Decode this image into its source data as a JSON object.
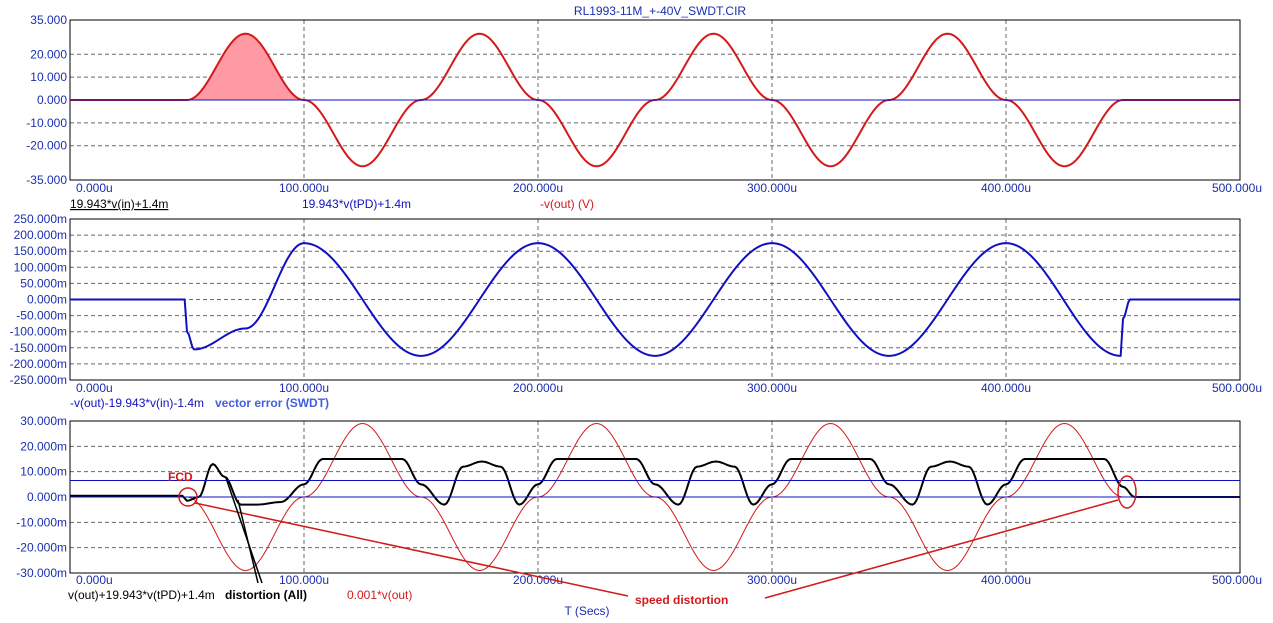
{
  "title": "RL1993-11M_+-40V_SWDT.CIR",
  "colors": {
    "red": "#d11a1a",
    "blue": "#1010c0",
    "black": "#000000",
    "fill": "#ff9aa5",
    "tick": "#1a2fb0",
    "annot": "#d11a1a",
    "vecerr": "#4060e0"
  },
  "x_axis": {
    "label": "T (Secs)",
    "range": [
      0,
      500
    ],
    "ticks": [
      0,
      100,
      200,
      300,
      400,
      500
    ],
    "tick_labels": [
      "0.000u",
      "100.000u",
      "200.000u",
      "300.000u",
      "400.000u",
      "500.000u"
    ]
  },
  "chart_data": [
    {
      "type": "line",
      "x_unit": "us",
      "ylim": [
        -35,
        35
      ],
      "y_ticks": [
        35,
        20,
        10,
        0,
        -10,
        -20,
        -35
      ],
      "y_tick_labels": [
        "35.000",
        "20.000",
        "10.000",
        "0.000",
        "-10.000",
        "-20.000",
        "-35.000"
      ],
      "legend": [
        "19.943*v(in)+1.4m",
        "19.943*v(tPD)+1.4m",
        "-v(out) (V)"
      ],
      "series": [
        {
          "name": "-v(out) (V)",
          "color": "#d11a1a",
          "points": [
            [
              0,
              0
            ],
            [
              50,
              0
            ],
            [
              75,
              29
            ],
            [
              100,
              0
            ],
            [
              125,
              -29
            ],
            [
              150,
              0
            ],
            [
              175,
              29
            ],
            [
              200,
              0
            ],
            [
              225,
              -29
            ],
            [
              250,
              0
            ],
            [
              275,
              29
            ],
            [
              300,
              0
            ],
            [
              325,
              -29
            ],
            [
              350,
              0
            ],
            [
              375,
              29
            ],
            [
              400,
              0
            ],
            [
              425,
              -29
            ],
            [
              450,
              0
            ],
            [
              500,
              0
            ]
          ]
        },
        {
          "name": "19.943*v(tPD)+1.4m",
          "color": "#1010c0",
          "points": [
            [
              0,
              0
            ],
            [
              500,
              0
            ]
          ]
        }
      ],
      "shaded": {
        "from": 50,
        "to": 100
      }
    },
    {
      "type": "line",
      "x_unit": "us",
      "ylim": [
        -250,
        250
      ],
      "y_unit": "m",
      "y_ticks": [
        250,
        200,
        150,
        100,
        50,
        0,
        -50,
        -100,
        -150,
        -200,
        -250
      ],
      "y_tick_labels": [
        "250.000m",
        "200.000m",
        "150.000m",
        "100.000m",
        "50.000m",
        "0.000m",
        "-50.000m",
        "-100.000m",
        "-150.000m",
        "-200.000m",
        "-250.000m"
      ],
      "legend": [
        "-v(out)-19.943*v(in)-1.4m"
      ],
      "annotation": "vector error (SWDT)",
      "series": [
        {
          "name": "-v(out)-19.943*v(in)-1.4m",
          "color": "#1010c0",
          "points": [
            [
              0,
              0
            ],
            [
              49,
              0
            ],
            [
              50,
              -100
            ],
            [
              53,
              -155
            ],
            [
              75,
              -90
            ],
            [
              100,
              175
            ],
            [
              150,
              -175
            ],
            [
              200,
              175
            ],
            [
              250,
              -175
            ],
            [
              300,
              175
            ],
            [
              350,
              -175
            ],
            [
              400,
              175
            ],
            [
              449,
              -175
            ],
            [
              450,
              -60
            ],
            [
              453,
              0
            ],
            [
              500,
              0
            ]
          ]
        }
      ]
    },
    {
      "type": "line",
      "x_unit": "us",
      "ylim": [
        -30,
        30
      ],
      "y_unit": "m",
      "y_ticks": [
        30,
        20,
        10,
        0,
        -10,
        -20,
        -30
      ],
      "y_tick_labels": [
        "30.000m",
        "20.000m",
        "10.000m",
        "0.000m",
        "-10.000m",
        "-20.000m",
        "-30.000m"
      ],
      "legend": [
        "v(out)+19.943*v(tPD)+1.4m",
        "0.001*v(out)"
      ],
      "annotations": [
        "FCD",
        "distortion (All)",
        "speed distortion"
      ],
      "series": [
        {
          "name": "0.001*v(out)",
          "color": "#d11a1a",
          "points": [
            [
              0,
              0
            ],
            [
              50,
              0
            ],
            [
              75,
              -29
            ],
            [
              100,
              0
            ],
            [
              125,
              29
            ],
            [
              150,
              0
            ],
            [
              175,
              -29
            ],
            [
              200,
              0
            ],
            [
              225,
              29
            ],
            [
              250,
              0
            ],
            [
              275,
              -29
            ],
            [
              300,
              0
            ],
            [
              325,
              29
            ],
            [
              350,
              0
            ],
            [
              375,
              -29
            ],
            [
              400,
              0
            ],
            [
              425,
              29
            ],
            [
              450,
              0
            ],
            [
              500,
              0
            ]
          ]
        },
        {
          "name": "v(out)+19.943*v(tPD)+1.4m",
          "color": "#000000",
          "points": [
            [
              0,
              0.5
            ],
            [
              48,
              0.5
            ],
            [
              50,
              -1.5
            ],
            [
              55,
              0
            ],
            [
              61,
              13
            ],
            [
              66,
              8
            ],
            [
              73,
              -3
            ],
            [
              80,
              -3
            ],
            [
              90,
              -2
            ],
            [
              100,
              5
            ],
            [
              108,
              15
            ],
            [
              125,
              15
            ],
            [
              142,
              15
            ],
            [
              150,
              5
            ],
            [
              160,
              -3
            ],
            [
              168,
              12
            ],
            [
              176,
              14
            ],
            [
              184,
              12
            ],
            [
              192,
              -3
            ],
            [
              200,
              5
            ],
            [
              208,
              15
            ],
            [
              225,
              15
            ],
            [
              242,
              15
            ],
            [
              250,
              5
            ],
            [
              260,
              -3
            ],
            [
              268,
              12
            ],
            [
              276,
              14
            ],
            [
              284,
              12
            ],
            [
              292,
              -3
            ],
            [
              300,
              5
            ],
            [
              308,
              15
            ],
            [
              325,
              15
            ],
            [
              342,
              15
            ],
            [
              350,
              5
            ],
            [
              360,
              -3
            ],
            [
              368,
              12
            ],
            [
              376,
              14
            ],
            [
              384,
              12
            ],
            [
              392,
              -3
            ],
            [
              400,
              5
            ],
            [
              408,
              15
            ],
            [
              425,
              15
            ],
            [
              442,
              15
            ],
            [
              450,
              4
            ],
            [
              455,
              0
            ],
            [
              500,
              0
            ]
          ]
        },
        {
          "name": "v(out)+19.943*v(tPD)+1.4m",
          "color": "#1010c0",
          "points": [
            [
              0,
              0
            ],
            [
              500,
              0
            ]
          ]
        },
        {
          "name": "v(out)+19.943*v(tPD)+1.4m",
          "color": "#1010c0",
          "points": [
            [
              0,
              6.5
            ],
            [
              500,
              6.5
            ]
          ]
        }
      ]
    }
  ]
}
